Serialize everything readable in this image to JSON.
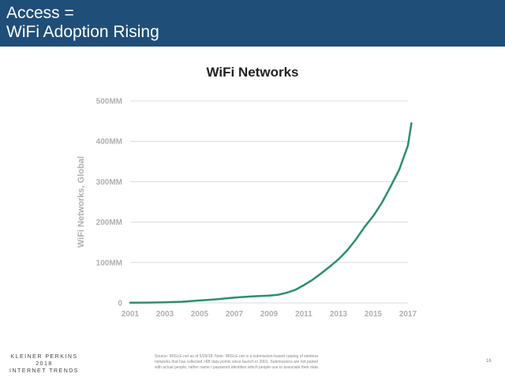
{
  "header": {
    "title_line1": "Access =",
    "title_line2": "WiFi Adoption Rising"
  },
  "colors": {
    "header_bg": "#1f4e79",
    "line": "#2a8f6f",
    "grid": "#dcdcdc",
    "axis_text": "#b0b0b0"
  },
  "chart_data": {
    "type": "line",
    "title": "WiFi Networks",
    "xlabel": "",
    "ylabel": "WiFi Networks, Global",
    "xlim": [
      2001,
      2017.2
    ],
    "ylim": [
      0,
      500
    ],
    "grid": true,
    "x_ticks": [
      "2001",
      "2003",
      "2005",
      "2007",
      "2009",
      "2011",
      "2013",
      "2015",
      "2017"
    ],
    "y_ticks": [
      "0",
      "100MM",
      "200MM",
      "300MM",
      "400MM",
      "500MM"
    ],
    "series": [
      {
        "x": [
          2001,
          2002,
          2003,
          2004,
          2005,
          2006,
          2007,
          2008,
          2009,
          2009.5,
          2010,
          2010.5,
          2011,
          2011.5,
          2012,
          2012.5,
          2013,
          2013.5,
          2014,
          2014.5,
          2015,
          2015.5,
          2016,
          2016.5,
          2017,
          2017.2
        ],
        "values": [
          0.5,
          0.8,
          1.5,
          3,
          6,
          9,
          13,
          16,
          18,
          20,
          25,
          32,
          44,
          57,
          73,
          90,
          108,
          130,
          157,
          188,
          215,
          248,
          288,
          330,
          390,
          445
        ]
      }
    ]
  },
  "footer": {
    "logo_line1": "KLEINER PERKINS",
    "logo_line2": "2018",
    "logo_line3": "INTERNET TRENDS",
    "source_line1": "Source: WIGLE.net as of 5/29/18.  Note: WIGLE.net is a submission-based catalog of wireless",
    "source_line2": "networks that has collected >6B data points since launch in 2001. Submissions are not paired",
    "source_line3": "with actual people, rather name / password identities which people use to associate their data.",
    "page_number": "16"
  }
}
